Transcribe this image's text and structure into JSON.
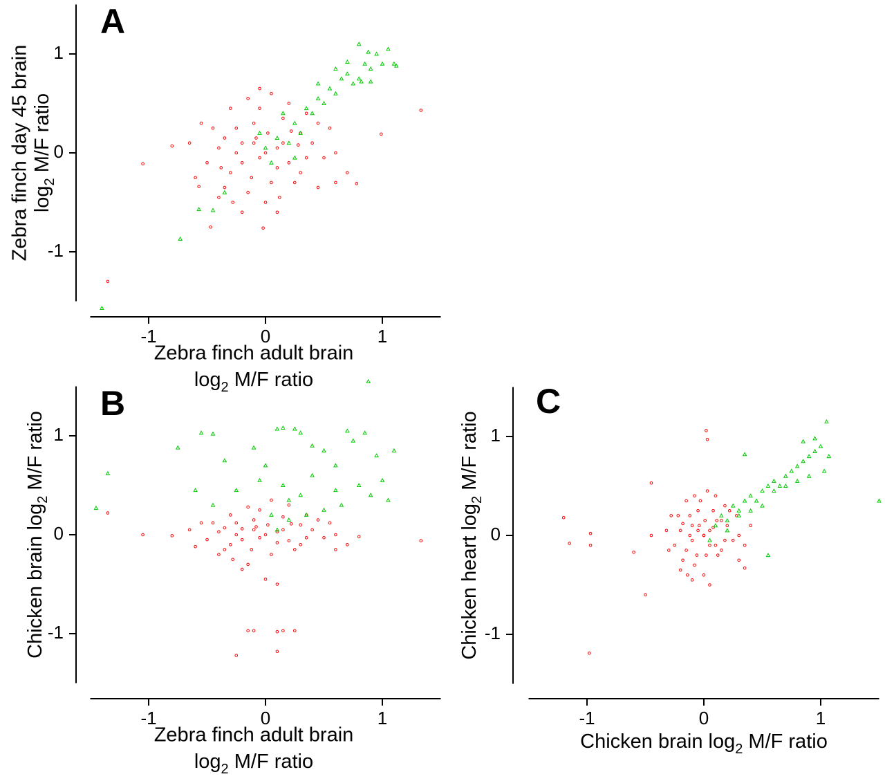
{
  "chart_data": [
    {
      "type": "scatter",
      "panel": "A",
      "xlabel": [
        "Zebra finch adult brain",
        [
          "log",
          "2",
          " M/F ratio"
        ]
      ],
      "ylabel": [
        "Zebra finch day 45 brain",
        [
          "log",
          "2",
          " M/F ratio"
        ]
      ],
      "xlim": [
        -1.5,
        1.5
      ],
      "ylim": [
        -1.5,
        1.5
      ],
      "xticks": [
        -1,
        0,
        1
      ],
      "yticks": [
        -1,
        0,
        1
      ],
      "series": [
        {
          "color": "#ff0000",
          "marker": "circle",
          "x": [
            -0.05,
            0.1,
            -0.2,
            0.2,
            -0.3,
            0.3,
            -0.1,
            0.05,
            -0.4,
            0.35,
            -0.25,
            0.15,
            -0.15,
            0.25,
            -0.35,
            0.4,
            -0.5,
            0.5,
            -0.05,
            0.0,
            -0.45,
            0.45,
            -0.3,
            0.2,
            -0.6,
            0.6,
            -0.2,
            0.1,
            0.7,
            -0.55,
            0.05,
            -0.1,
            0.0,
            -0.2,
            0.1,
            -0.08,
            0.15,
            -0.25,
            0.3,
            -0.35,
            0.22,
            -0.12,
            0.02,
            -0.4,
            0.55,
            -0.28,
            0.35,
            -0.15,
            0.6,
            -0.65,
            0.45,
            -0.05,
            0.12,
            -0.38,
            0.28,
            -1.35,
            -1.05,
            -0.8,
            1.33,
            0.99,
            0.78,
            -0.47,
            -0.02,
            -0.57
          ],
          "y": [
            -0.05,
            0.05,
            0.1,
            -0.1,
            -0.2,
            0.2,
            0.3,
            -0.3,
            0.05,
            -0.05,
            0.25,
            0.35,
            -0.4,
            -0.3,
            -0.35,
            0.1,
            -0.1,
            -0.05,
            0.45,
            -0.5,
            0.25,
            0.3,
            0.45,
            0.5,
            -0.25,
            0.0,
            -0.6,
            -0.6,
            -0.2,
            0.3,
            0.6,
            0.1,
            0.0,
            -0.1,
            -0.15,
            0.15,
            0.1,
            0.0,
            -0.2,
            0.15,
            0.22,
            -0.25,
            0.2,
            -0.45,
            0.25,
            -0.5,
            0.4,
            0.55,
            -0.3,
            0.1,
            -0.35,
            0.65,
            -0.45,
            -0.15,
            0.08,
            -1.3,
            -0.11,
            0.07,
            0.43,
            0.19,
            -0.31,
            -0.75,
            -0.76,
            -0.34
          ]
        },
        {
          "color": "#00cc00",
          "marker": "triangle",
          "x": [
            -1.4,
            -0.73,
            -0.57,
            -0.45,
            -0.35,
            0.0,
            0.1,
            0.2,
            0.05,
            0.25,
            0.3,
            0.35,
            0.4,
            0.45,
            0.5,
            0.55,
            0.6,
            0.65,
            0.7,
            0.75,
            0.8,
            0.85,
            0.9,
            0.95,
            1.0,
            1.05,
            1.1,
            0.8,
            0.88,
            0.45,
            0.6,
            1.12,
            0.15,
            0.25,
            -0.05,
            0.7,
            0.82,
            0.9
          ],
          "y": [
            -1.57,
            -0.87,
            -0.57,
            -0.58,
            -0.4,
            0.05,
            0.15,
            0.1,
            -0.1,
            0.3,
            0.2,
            0.45,
            0.4,
            0.55,
            0.5,
            0.65,
            0.6,
            0.75,
            0.8,
            0.7,
            0.75,
            0.9,
            0.85,
            1.0,
            0.9,
            1.05,
            0.9,
            1.1,
            1.02,
            0.7,
            0.85,
            0.88,
            0.4,
            -0.05,
            0.2,
            0.92,
            0.72,
            0.72
          ]
        }
      ]
    },
    {
      "type": "scatter",
      "panel": "B",
      "xlabel": [
        "Zebra finch adult brain",
        [
          "log",
          "2",
          " M/F ratio"
        ]
      ],
      "ylabel": [
        [
          "Chicken brain log",
          "2",
          " M/F ratio"
        ]
      ],
      "xlim": [
        -1.5,
        1.5
      ],
      "ylim": [
        -1.5,
        1.5
      ],
      "xticks": [
        -1,
        0,
        1
      ],
      "yticks": [
        -1,
        0,
        1
      ],
      "series": [
        {
          "color": "#ff0000",
          "marker": "circle",
          "x": [
            -0.05,
            0.1,
            -0.2,
            0.2,
            -0.3,
            0.3,
            -0.1,
            0.05,
            -0.4,
            0.35,
            -0.25,
            0.15,
            -0.15,
            0.25,
            -0.35,
            0.4,
            -0.5,
            0.5,
            -0.05,
            0.0,
            -0.45,
            0.45,
            -0.3,
            0.2,
            -0.6,
            0.6,
            -0.2,
            0.1,
            0.7,
            -0.55,
            0.05,
            -0.1,
            0.0,
            -0.2,
            0.1,
            -0.08,
            0.15,
            -0.25,
            0.3,
            -0.35,
            0.22,
            -0.12,
            0.02,
            -0.4,
            0.55,
            -0.28,
            0.35,
            -0.15,
            0.6,
            -0.65,
            -1.05,
            -0.8,
            -1.35,
            1.33,
            -0.25,
            -0.15,
            -0.1,
            0.1,
            0.15,
            0.25,
            0.1,
            0.8
          ],
          "y": [
            -0.03,
            0.03,
            0.06,
            -0.06,
            -0.1,
            0.1,
            0.15,
            -0.2,
            0.03,
            -0.03,
            0.12,
            0.18,
            -0.3,
            -0.15,
            -0.15,
            0.05,
            -0.05,
            -0.03,
            0.25,
            -0.45,
            0.12,
            0.15,
            0.2,
            0.3,
            -0.12,
            0.0,
            -0.35,
            -0.5,
            -0.1,
            0.12,
            0.35,
            0.05,
            0.0,
            -0.05,
            -0.08,
            0.08,
            0.05,
            0.0,
            -0.1,
            0.07,
            0.11,
            -0.15,
            0.1,
            -0.2,
            0.12,
            -0.25,
            0.2,
            0.28,
            -0.15,
            0.05,
            0.0,
            -0.01,
            0.22,
            -0.06,
            -1.22,
            -0.97,
            -0.97,
            -0.98,
            -0.97,
            -0.97,
            -1.18,
            -0.02
          ]
        },
        {
          "color": "#00cc00",
          "marker": "triangle",
          "x": [
            -1.35,
            -1.45,
            -0.75,
            -0.55,
            -0.45,
            -0.6,
            -0.45,
            -0.35,
            -0.25,
            -0.1,
            0.1,
            0.15,
            0.25,
            0.3,
            0.4,
            0.5,
            0.6,
            0.7,
            0.75,
            0.85,
            0.88,
            0.95,
            1.1,
            1.0,
            1.05,
            0.8,
            0.6,
            0.4,
            0.3,
            0.2,
            0.15,
            0.05,
            0.1,
            0.2,
            0.35,
            0.5,
            0.0,
            -0.05,
            0.65,
            0.9
          ],
          "y": [
            0.62,
            0.27,
            0.88,
            1.03,
            1.02,
            0.45,
            0.3,
            0.75,
            0.45,
            0.88,
            1.07,
            1.08,
            1.07,
            1.03,
            0.9,
            0.85,
            0.7,
            1.05,
            0.95,
            1.03,
            1.55,
            0.8,
            0.85,
            0.55,
            0.35,
            0.5,
            0.45,
            0.6,
            0.4,
            0.35,
            0.5,
            0.2,
            0.05,
            0.15,
            0.2,
            0.25,
            0.7,
            0.55,
            0.3,
            0.4
          ]
        }
      ]
    },
    {
      "type": "scatter",
      "panel": "C",
      "xlabel": [
        [
          "Chicken brain log",
          "2",
          " M/F ratio"
        ]
      ],
      "ylabel": [
        [
          "Chicken heart log",
          "2",
          " M/F ratio"
        ]
      ],
      "xlim": [
        -1.5,
        1.5
      ],
      "ylim": [
        -1.5,
        1.5
      ],
      "xticks": [
        -1,
        0,
        1
      ],
      "yticks": [
        -1,
        0,
        1
      ],
      "series": [
        {
          "color": "#ff0000",
          "marker": "circle",
          "x": [
            0.0,
            0.05,
            -0.1,
            0.1,
            -0.15,
            0.15,
            -0.05,
            0.02,
            -0.2,
            0.18,
            -0.12,
            0.08,
            -0.08,
            0.12,
            -0.18,
            0.2,
            -0.25,
            0.25,
            -0.03,
            0.0,
            -0.22,
            0.22,
            -0.15,
            0.1,
            -0.3,
            0.3,
            -0.1,
            0.05,
            0.35,
            -0.28,
            0.03,
            -0.05,
            0.0,
            -0.1,
            0.05,
            -0.04,
            0.08,
            -0.12,
            0.15,
            -0.18,
            0.11,
            -0.06,
            0.01,
            -0.2,
            0.28,
            -0.14,
            0.18,
            -0.08,
            0.3,
            -0.32,
            -0.45,
            0.4,
            -1.2,
            -1.15,
            -0.97,
            -0.97,
            -0.98,
            -0.5,
            -0.45,
            0.02,
            0.03,
            -0.6,
            0.35
          ],
          "y": [
            0.0,
            0.05,
            0.1,
            -0.1,
            -0.15,
            0.15,
            0.25,
            -0.2,
            0.05,
            -0.05,
            0.2,
            0.25,
            -0.3,
            -0.2,
            -0.25,
            0.1,
            -0.1,
            -0.05,
            0.35,
            -0.4,
            0.2,
            0.25,
            0.35,
            0.4,
            -0.15,
            0.0,
            -0.45,
            -0.5,
            -0.1,
            0.2,
            0.45,
            0.05,
            0.0,
            -0.05,
            -0.1,
            0.1,
            0.08,
            0.0,
            -0.15,
            0.12,
            0.15,
            -0.2,
            0.15,
            -0.35,
            0.2,
            -0.4,
            0.3,
            0.4,
            -0.25,
            0.05,
            0.0,
            0.1,
            0.18,
            -0.08,
            0.02,
            -0.1,
            -1.19,
            -0.6,
            0.53,
            1.06,
            0.97,
            -0.17,
            -0.33
          ]
        },
        {
          "color": "#00cc00",
          "marker": "triangle",
          "x": [
            0.1,
            0.15,
            0.2,
            0.25,
            0.3,
            0.35,
            0.4,
            0.45,
            0.5,
            0.55,
            0.6,
            0.65,
            0.7,
            0.75,
            0.8,
            0.85,
            0.9,
            0.95,
            1.0,
            1.05,
            1.07,
            1.03,
            0.9,
            0.8,
            0.7,
            0.6,
            0.5,
            0.4,
            0.3,
            0.35,
            0.55,
            1.5,
            0.2,
            0.05,
            0.85,
            0.95
          ],
          "y": [
            0.1,
            0.2,
            0.15,
            0.3,
            0.25,
            0.35,
            0.4,
            0.35,
            0.45,
            0.5,
            0.55,
            0.5,
            0.6,
            0.65,
            0.7,
            0.75,
            0.8,
            0.85,
            0.9,
            1.15,
            0.8,
            0.65,
            0.6,
            0.55,
            0.5,
            0.45,
            0.3,
            0.25,
            0.2,
            0.82,
            -0.2,
            0.35,
            0.05,
            -0.05,
            0.95,
            0.98
          ]
        }
      ]
    }
  ]
}
